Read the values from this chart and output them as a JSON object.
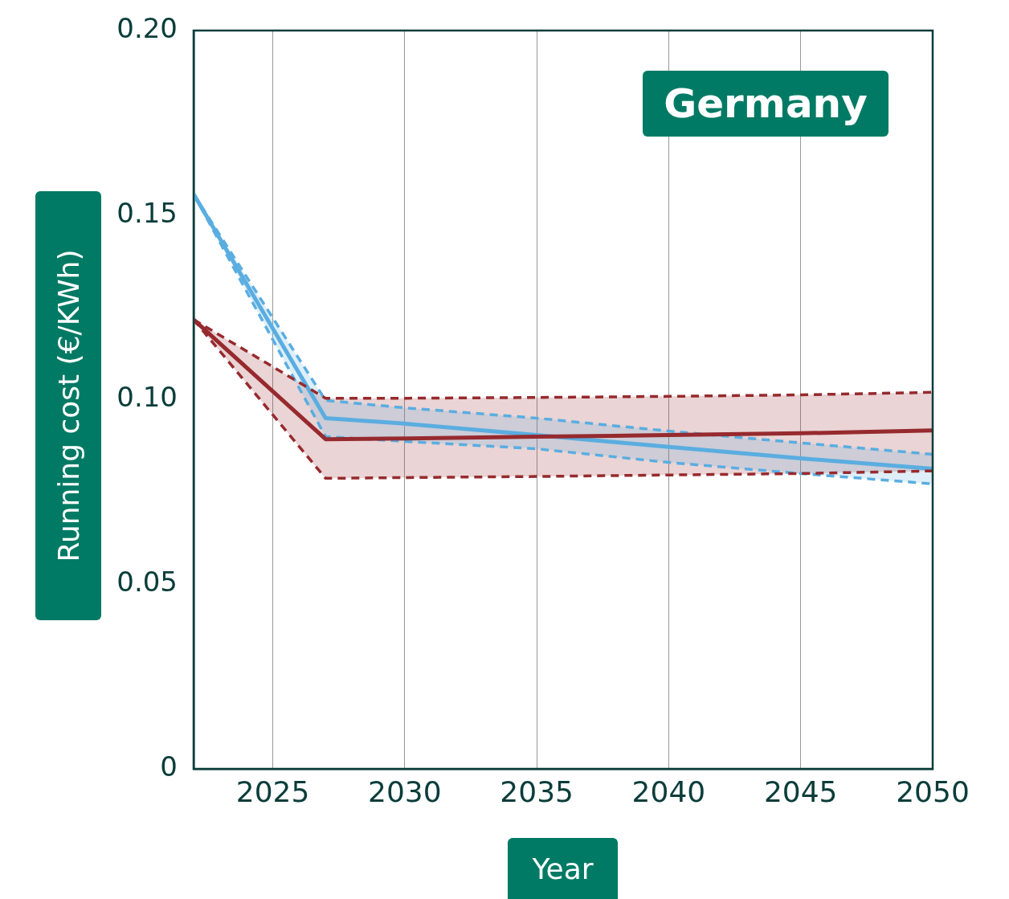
{
  "chart_data": {
    "type": "line",
    "title": "Germany",
    "xlabel": "Year",
    "ylabel": "Running cost (€/KWh)",
    "x": [
      2022,
      2027,
      2030,
      2035,
      2040,
      2045,
      2050
    ],
    "series": [
      {
        "color": "#962a2e",
        "line_style": "dashed",
        "values": [
          0.1217,
          0.0787,
          0.0789,
          0.0792,
          0.0796,
          0.08,
          0.0807
        ]
      },
      {
        "color": "#962a2e",
        "line_style": "dashed",
        "values": [
          0.1217,
          0.1004,
          0.1004,
          0.1006,
          0.1009,
          0.1013,
          0.102
        ]
      },
      {
        "color": "#962a2e",
        "values": [
          0.1217,
          0.0893,
          0.0895,
          0.09,
          0.0904,
          0.0909,
          0.0917
        ],
        "lower": [
          0.1217,
          0.0787,
          0.0789,
          0.0792,
          0.0796,
          0.08,
          0.0807
        ],
        "upper": [
          0.1217,
          0.1004,
          0.1004,
          0.1006,
          0.1009,
          0.1013,
          0.102
        ]
      },
      {
        "color": "#5aade0",
        "line_style": "dashed",
        "values": [
          0.1557,
          0.09,
          0.0887,
          0.0867,
          0.083,
          0.08,
          0.0772
        ]
      },
      {
        "color": "#5aade0",
        "line_style": "dashed",
        "values": [
          0.1557,
          0.0998,
          0.0978,
          0.095,
          0.0915,
          0.0883,
          0.0852
        ]
      },
      {
        "color": "#5aade0",
        "values": [
          0.1557,
          0.095,
          0.0935,
          0.0904,
          0.0872,
          0.0841,
          0.0813
        ],
        "lower": [
          0.1557,
          0.09,
          0.0887,
          0.0867,
          0.083,
          0.08,
          0.0772
        ],
        "upper": [
          0.1557,
          0.0998,
          0.0978,
          0.095,
          0.0915,
          0.0883,
          0.0852
        ]
      }
    ],
    "xlim": [
      2022,
      2050
    ],
    "xticks": [
      2025,
      2030,
      2035,
      2040,
      2045,
      2050
    ],
    "ylim": [
      0,
      0.2
    ],
    "yticks": [
      0,
      0.05,
      {
        "value": 0.1,
        "label": "0.10"
      },
      0.15,
      {
        "value": 0.2,
        "label": "0.20"
      }
    ],
    "grid": "x",
    "legend": false,
    "marker": "none",
    "line_style": "solid"
  }
}
